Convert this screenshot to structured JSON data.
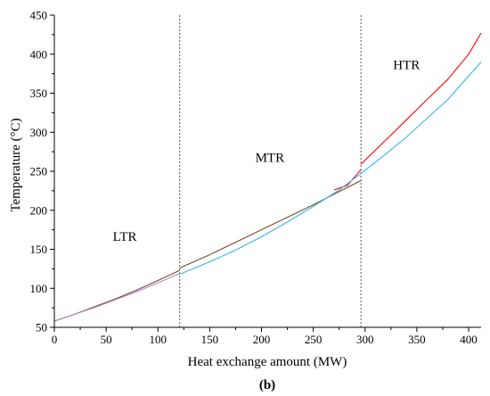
{
  "chart_data": {
    "type": "line",
    "xlabel": "Heat exchange amount (MW)",
    "ylabel": "Temperature (°C)",
    "caption": "(b)",
    "xlim": [
      0,
      412
    ],
    "ylim": [
      50,
      450
    ],
    "xticks": [
      0,
      50,
      100,
      150,
      200,
      250,
      300,
      350,
      400
    ],
    "yticks": [
      50,
      100,
      150,
      200,
      250,
      300,
      350,
      400,
      450
    ],
    "grid": false,
    "legend": "none",
    "colors": {
      "axis": "#000000",
      "divider": "#555555"
    },
    "region_dividers": [
      121,
      296
    ],
    "region_labels": [
      {
        "text": "LTR",
        "x": 68,
        "y": 161
      },
      {
        "text": "MTR",
        "x": 208,
        "y": 262
      },
      {
        "text": "HTR",
        "x": 340,
        "y": 381
      }
    ],
    "series": [
      {
        "color": "#7a4a2a",
        "x": [
          0,
          20,
          40,
          60,
          80,
          100,
          121
        ],
        "y": [
          58,
          67,
          77,
          87,
          98,
          110,
          123
        ]
      },
      {
        "color": "#b084c4",
        "x": [
          0,
          20,
          40,
          60,
          80,
          100,
          121
        ],
        "y": [
          58,
          67,
          76,
          86,
          96,
          107,
          119
        ]
      },
      {
        "color": "#7a4a2a",
        "x": [
          121,
          150,
          175,
          200,
          225,
          250,
          275,
          296
        ],
        "y": [
          126,
          143,
          159,
          175,
          191,
          207,
          224,
          238
        ]
      },
      {
        "color": "#ff0000",
        "x": [
          270,
          283,
          296
        ],
        "y": [
          226,
          232,
          252
        ]
      },
      {
        "color": "#ff0000",
        "x": [
          296,
          320,
          340,
          360,
          380,
          400,
          412
        ],
        "y": [
          259,
          290,
          316,
          342,
          368,
          400,
          427
        ]
      },
      {
        "color": "#33b7ea",
        "x": [
          121,
          150,
          175,
          200,
          225,
          250,
          275,
          296,
          320,
          340,
          360,
          380,
          400,
          412
        ],
        "y": [
          118,
          134,
          149,
          166,
          185,
          205,
          226,
          247,
          272,
          294,
          318,
          342,
          372,
          390
        ]
      }
    ]
  }
}
